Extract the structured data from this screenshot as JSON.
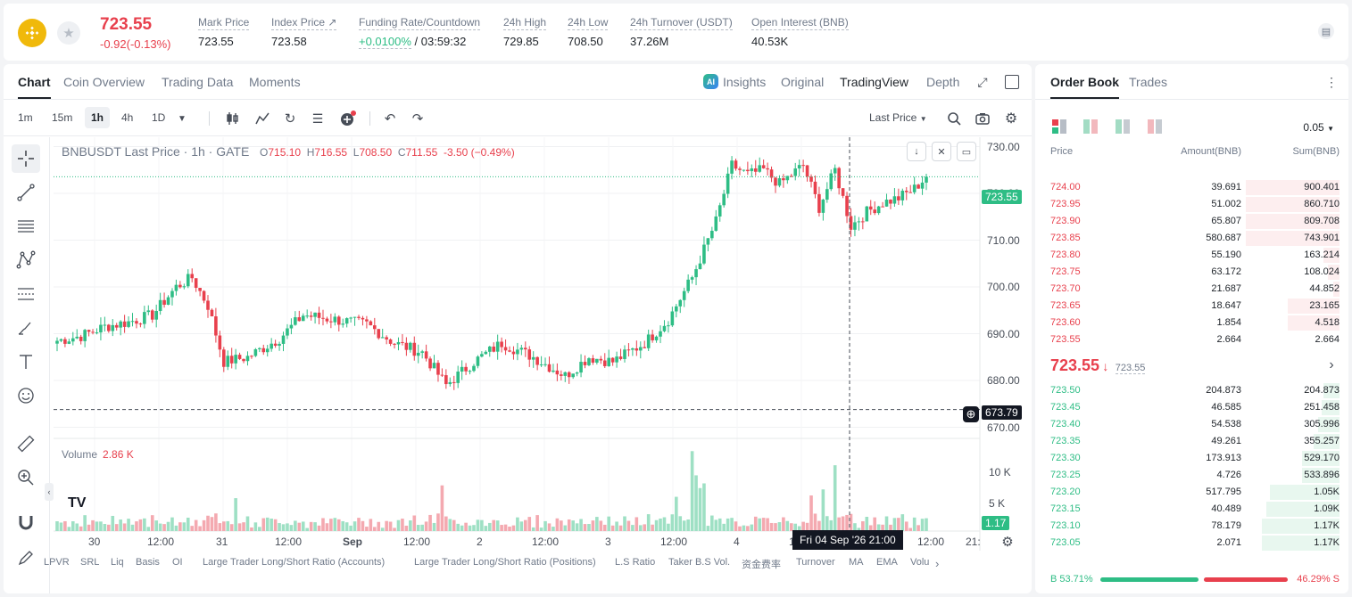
{
  "ticker": {
    "last_price": "723.55",
    "change": "-0.92(-0.13%)",
    "stats": [
      {
        "label": "Mark Price",
        "value": "723.55"
      },
      {
        "label": "Index Price ↗",
        "value": "723.58"
      },
      {
        "label": "Funding Rate/Countdown",
        "value_green": "+0.0100%",
        "value": " / 03:59:32"
      },
      {
        "label": "24h High",
        "value": "729.85"
      },
      {
        "label": "24h Low",
        "value": "708.50"
      },
      {
        "label": "24h Turnover (USDT)",
        "value": "37.26M"
      },
      {
        "label": "Open Interest (BNB)",
        "value": "40.53K"
      }
    ]
  },
  "chart_tabs": [
    "Chart",
    "Coin Overview",
    "Trading Data",
    "Moments"
  ],
  "view_options": {
    "insights": "Insights",
    "original": "Original",
    "tradingview": "TradingView",
    "depth": "Depth"
  },
  "intervals": [
    "1m",
    "15m",
    "1h",
    "4h",
    "1D"
  ],
  "price_source": "Last Price",
  "legend": {
    "symbol": "BNBUSDT Last Price · 1h · GATE",
    "o_key": "O",
    "o": "715.10",
    "h_key": "H",
    "h": "716.55",
    "l_key": "L",
    "l": "708.50",
    "c_key": "C",
    "c": "711.55",
    "chg": "-3.50 (−0.49%)"
  },
  "volume_legend": {
    "label": "Volume",
    "value": "2.86 K"
  },
  "tags": {
    "last": "723.55",
    "cross": "673.79",
    "vol": "1.17"
  },
  "crosshair_time": "Fri 04 Sep '26   21:00",
  "tv_logo": "TV",
  "indicators": [
    "LPVR",
    "SRL",
    "Liq",
    "Basis",
    "OI",
    "Large Trader Long/Short Ratio (Accounts)",
    "Large Trader Long/Short Ratio (Positions)",
    "L.S Ratio",
    "Taker B.S Vol.",
    "资金费率",
    "Turnover",
    "MA",
    "EMA",
    "Volu"
  ],
  "chart_data": {
    "type": "candlestick",
    "title": "BNBUSDT Last Price · 1h · GATE",
    "y_ticks": [
      "730.00",
      "720.00",
      "710.00",
      "700.00",
      "690.00",
      "680.00",
      "670.00"
    ],
    "ylim": [
      668,
      732
    ],
    "vol_ticks": [
      "10 K",
      "5 K"
    ],
    "x_ticks": [
      "30",
      "12:00",
      "31",
      "12:00",
      "Sep",
      "12:00",
      "2",
      "12:00",
      "3",
      "12:00",
      "4",
      "12:00",
      "12:00",
      "21:"
    ],
    "close_anchors": [
      [
        0,
        688.5
      ],
      [
        6,
        689.5
      ],
      [
        12,
        691.5
      ],
      [
        18,
        692.5
      ],
      [
        24,
        694
      ],
      [
        30,
        700
      ],
      [
        34,
        702
      ],
      [
        38,
        696
      ],
      [
        42,
        684
      ],
      [
        48,
        685
      ],
      [
        56,
        689
      ],
      [
        62,
        694
      ],
      [
        70,
        693
      ],
      [
        78,
        692
      ],
      [
        85,
        688
      ],
      [
        92,
        686
      ],
      [
        98,
        679
      ],
      [
        105,
        684
      ],
      [
        112,
        688
      ],
      [
        120,
        685
      ],
      [
        128,
        681
      ],
      [
        134,
        685
      ],
      [
        140,
        684
      ],
      [
        148,
        688
      ],
      [
        154,
        693
      ],
      [
        160,
        702
      ],
      [
        166,
        714
      ],
      [
        170,
        726
      ],
      [
        174,
        724
      ],
      [
        178,
        725
      ],
      [
        182,
        722
      ],
      [
        188,
        726
      ],
      [
        192,
        717
      ],
      [
        196,
        725
      ],
      [
        200,
        713
      ],
      [
        204,
        716
      ],
      [
        208,
        718
      ],
      [
        212,
        719
      ],
      [
        216,
        721
      ],
      [
        219,
        723.55
      ]
    ],
    "volume_events": [
      [
        45,
        4.9
      ],
      [
        97,
        6.8
      ],
      [
        156,
        5.1
      ],
      [
        160,
        11.9
      ],
      [
        161,
        8.3
      ],
      [
        162,
        6.4
      ],
      [
        163,
        7.1
      ],
      [
        190,
        5.3
      ],
      [
        196,
        9.8
      ],
      [
        193,
        6.2
      ]
    ],
    "last_price": 723.55,
    "crosshair_price": 673.79
  },
  "order_book": {
    "tabs": [
      "Order Book",
      "Trades"
    ],
    "precision": "0.05",
    "headers": {
      "price": "Price",
      "amount": "Amount(BNB)",
      "sum": "Sum(BNB)"
    },
    "asks": [
      {
        "price": "724.00",
        "amount": "39.691",
        "sum": "900.401",
        "depth": 0.99
      },
      {
        "price": "723.95",
        "amount": "51.002",
        "sum": "860.710",
        "depth": 0.99
      },
      {
        "price": "723.90",
        "amount": "65.807",
        "sum": "809.708",
        "depth": 0.99
      },
      {
        "price": "723.85",
        "amount": "580.687",
        "sum": "743.901",
        "depth": 0.99
      },
      {
        "price": "723.80",
        "amount": "55.190",
        "sum": "163.214",
        "depth": 0.17
      },
      {
        "price": "723.75",
        "amount": "63.172",
        "sum": "108.024",
        "depth": 0.12
      },
      {
        "price": "723.70",
        "amount": "21.687",
        "sum": "44.852",
        "depth": 0.07
      },
      {
        "price": "723.65",
        "amount": "18.647",
        "sum": "23.165",
        "depth": 0.55
      },
      {
        "price": "723.60",
        "amount": "1.854",
        "sum": "4.518",
        "depth": 0.55
      },
      {
        "price": "723.55",
        "amount": "2.664",
        "sum": "2.664",
        "depth": 0.0
      }
    ],
    "mid_price": "723.55",
    "mid_mark": "723.55",
    "bids": [
      {
        "price": "723.50",
        "amount": "204.873",
        "sum": "204.873",
        "depth": 0.17
      },
      {
        "price": "723.45",
        "amount": "46.585",
        "sum": "251.458",
        "depth": 0.19
      },
      {
        "price": "723.40",
        "amount": "54.538",
        "sum": "305.996",
        "depth": 0.23
      },
      {
        "price": "723.35",
        "amount": "49.261",
        "sum": "355.257",
        "depth": 0.27
      },
      {
        "price": "723.30",
        "amount": "173.913",
        "sum": "529.170",
        "depth": 0.4
      },
      {
        "price": "723.25",
        "amount": "4.726",
        "sum": "533.896",
        "depth": 0.4
      },
      {
        "price": "723.20",
        "amount": "517.795",
        "sum": "1.05K",
        "depth": 0.74
      },
      {
        "price": "723.15",
        "amount": "40.489",
        "sum": "1.09K",
        "depth": 0.77
      },
      {
        "price": "723.10",
        "amount": "78.179",
        "sum": "1.17K",
        "depth": 0.82
      },
      {
        "price": "723.05",
        "amount": "2.071",
        "sum": "1.17K",
        "depth": 0.82
      }
    ],
    "buy_ratio": "B 53.71%",
    "sell_ratio": "46.29% S",
    "buy_fraction": 0.5371
  },
  "colors": {
    "up": "#2ebd85",
    "down": "#e8404d",
    "up_bg": "#e8f7ef",
    "down_bg": "#fdeeef"
  },
  "icons": [
    "bnb-logo-icon",
    "star-icon",
    "doc-icon",
    "ai-icon",
    "expand-icon",
    "fullscreen-icon",
    "candles-icon",
    "indicators-icon",
    "replay-icon",
    "templates-icon",
    "alert-icon",
    "undo-icon",
    "redo-icon",
    "search-icon",
    "camera-icon",
    "gear-icon",
    "more-icon"
  ]
}
